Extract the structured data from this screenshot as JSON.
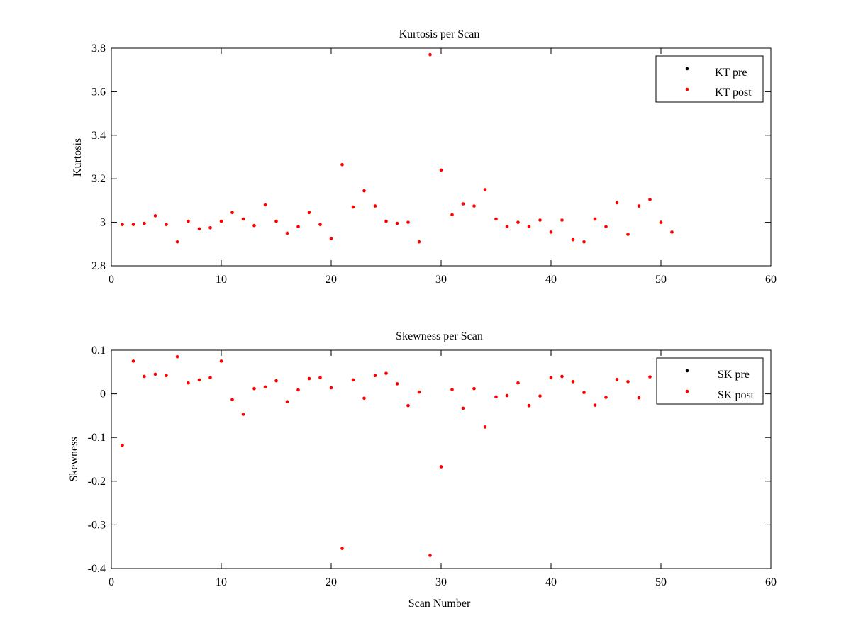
{
  "chart_data": [
    {
      "type": "scatter",
      "title": "Kurtosis per Scan",
      "xlabel": "",
      "ylabel": "Kurtosis",
      "xlim": [
        0,
        60
      ],
      "ylim": [
        2.8,
        3.8
      ],
      "xticks": [
        "0",
        "10",
        "20",
        "30",
        "40",
        "50",
        "60"
      ],
      "yticks": [
        "2.8",
        "3",
        "3.2",
        "3.4",
        "3.6",
        "3.8"
      ],
      "grid": false,
      "legend_position": "top-right",
      "series": [
        {
          "name": "KT pre",
          "color": "#000000",
          "marker": "dot",
          "points": []
        },
        {
          "name": "KT post",
          "color": "#ff0000",
          "marker": "dot",
          "points": [
            [
              1,
              2.99
            ],
            [
              2,
              2.99
            ],
            [
              3,
              2.995
            ],
            [
              4,
              3.03
            ],
            [
              5,
              2.99
            ],
            [
              6,
              2.91
            ],
            [
              7,
              3.005
            ],
            [
              8,
              2.97
            ],
            [
              9,
              2.975
            ],
            [
              10,
              3.005
            ],
            [
              11,
              3.045
            ],
            [
              12,
              3.015
            ],
            [
              13,
              2.985
            ],
            [
              14,
              3.08
            ],
            [
              15,
              3.005
            ],
            [
              16,
              2.95
            ],
            [
              17,
              2.98
            ],
            [
              18,
              3.045
            ],
            [
              19,
              2.99
            ],
            [
              20,
              2.925
            ],
            [
              21,
              3.265
            ],
            [
              22,
              3.07
            ],
            [
              23,
              3.145
            ],
            [
              24,
              3.075
            ],
            [
              25,
              3.005
            ],
            [
              26,
              2.995
            ],
            [
              27,
              3.0
            ],
            [
              28,
              2.91
            ],
            [
              29,
              3.77
            ],
            [
              30,
              3.24
            ],
            [
              31,
              3.035
            ],
            [
              32,
              3.085
            ],
            [
              33,
              3.075
            ],
            [
              34,
              3.15
            ],
            [
              35,
              3.015
            ],
            [
              36,
              2.98
            ],
            [
              37,
              3.0
            ],
            [
              38,
              2.98
            ],
            [
              39,
              3.01
            ],
            [
              40,
              2.955
            ],
            [
              41,
              3.01
            ],
            [
              42,
              2.92
            ],
            [
              43,
              2.91
            ],
            [
              44,
              3.015
            ],
            [
              45,
              2.98
            ],
            [
              46,
              3.09
            ],
            [
              47,
              2.945
            ],
            [
              48,
              3.075
            ],
            [
              49,
              3.105
            ],
            [
              50,
              3.0
            ],
            [
              51,
              2.955
            ]
          ]
        }
      ]
    },
    {
      "type": "scatter",
      "title": "Skewness per Scan",
      "xlabel": "Scan Number",
      "ylabel": "Skewness",
      "xlim": [
        0,
        60
      ],
      "ylim": [
        -0.4,
        0.1
      ],
      "xticks": [
        "0",
        "10",
        "20",
        "30",
        "40",
        "50",
        "60"
      ],
      "yticks": [
        "-0.4",
        "-0.3",
        "-0.2",
        "-0.1",
        "0",
        "0.1"
      ],
      "grid": false,
      "legend_position": "top-right",
      "series": [
        {
          "name": "SK pre",
          "color": "#000000",
          "marker": "dot",
          "points": []
        },
        {
          "name": "SK post",
          "color": "#ff0000",
          "marker": "dot",
          "points": [
            [
              1,
              -0.118
            ],
            [
              2,
              0.075
            ],
            [
              3,
              0.04
            ],
            [
              4,
              0.045
            ],
            [
              5,
              0.042
            ],
            [
              6,
              0.085
            ],
            [
              7,
              0.025
            ],
            [
              8,
              0.032
            ],
            [
              9,
              0.037
            ],
            [
              10,
              0.075
            ],
            [
              11,
              -0.013
            ],
            [
              12,
              -0.047
            ],
            [
              13,
              0.012
            ],
            [
              14,
              0.016
            ],
            [
              15,
              0.03
            ],
            [
              16,
              -0.018
            ],
            [
              17,
              0.009
            ],
            [
              18,
              0.035
            ],
            [
              19,
              0.037
            ],
            [
              20,
              0.014
            ],
            [
              21,
              -0.354
            ],
            [
              22,
              0.032
            ],
            [
              23,
              -0.01
            ],
            [
              24,
              0.042
            ],
            [
              25,
              0.047
            ],
            [
              26,
              0.023
            ],
            [
              27,
              -0.027
            ],
            [
              28,
              0.004
            ],
            [
              29,
              -0.37
            ],
            [
              30,
              -0.167
            ],
            [
              31,
              0.01
            ],
            [
              32,
              -0.033
            ],
            [
              33,
              0.012
            ],
            [
              34,
              -0.076
            ],
            [
              35,
              -0.007
            ],
            [
              36,
              -0.004
            ],
            [
              37,
              0.025
            ],
            [
              38,
              -0.027
            ],
            [
              39,
              -0.005
            ],
            [
              40,
              0.037
            ],
            [
              41,
              0.04
            ],
            [
              42,
              0.028
            ],
            [
              43,
              0.003
            ],
            [
              44,
              -0.026
            ],
            [
              45,
              -0.008
            ],
            [
              46,
              0.033
            ],
            [
              47,
              0.028
            ],
            [
              48,
              -0.009
            ],
            [
              49,
              0.039
            ]
          ]
        }
      ]
    }
  ]
}
